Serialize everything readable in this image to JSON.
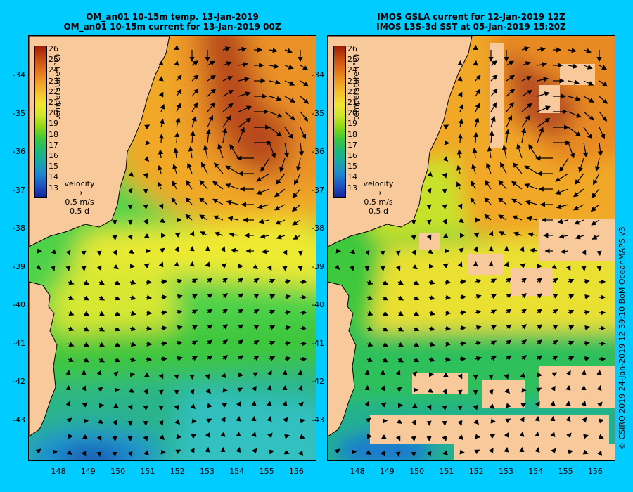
{
  "left_panel": {
    "title_line1": "OM_an01 10-15m temp. 13-Jan-2019",
    "title_line2": "OM_an01 10-15m current for 13-Jan-2019 00Z"
  },
  "right_panel": {
    "title_line1": "IMOS GSLA current for 12-Jan-2019 12Z",
    "title_line2": "IMOS L3S-3d SST at 05-Jan-2019 15:20Z"
  },
  "colorbar": {
    "title": "temperature (°C)",
    "ticks": [
      "26",
      "25",
      "24",
      "23",
      "22",
      "21",
      "20",
      "19",
      "18",
      "17",
      "16",
      "15",
      "14",
      "13"
    ],
    "colors": [
      "#a01e0a",
      "#c44a10",
      "#e0701a",
      "#ee9a24",
      "#f4c02e",
      "#f0e632",
      "#cce62a",
      "#8ad616",
      "#3cc83c",
      "#1eb878",
      "#18a8a8",
      "#1e88d0",
      "#1c56c4",
      "#16249c"
    ]
  },
  "velocity_legend": {
    "label": "velocity",
    "speed": "0.5 m/s",
    "duration": "0.5 d"
  },
  "y_axis_labels": [
    "-34",
    "-35",
    "-36",
    "-37",
    "-38",
    "-39",
    "-40",
    "-41",
    "-42",
    "-43"
  ],
  "x_axis_labels": [
    "148",
    "149",
    "150",
    "151",
    "152",
    "153",
    "154",
    "155",
    "156"
  ],
  "credit": "© CSIRO 2019   24-Jan-2019 12:39:10 BoM OceanMAPS v3",
  "colors": {
    "background": "#00ccff",
    "land": "#f8c99b",
    "coast": "#000000"
  }
}
